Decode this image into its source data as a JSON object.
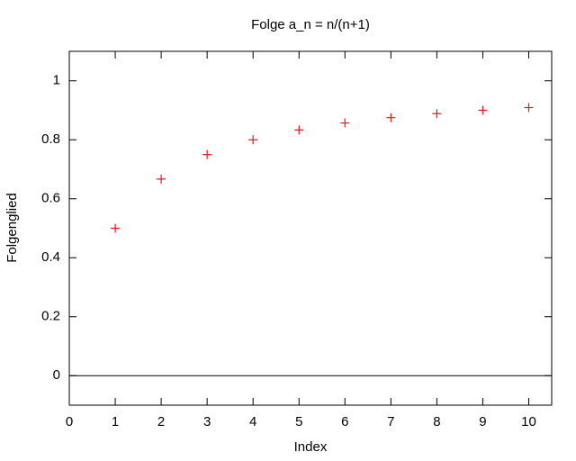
{
  "chart_data": {
    "type": "scatter",
    "title": "Folge a_n = n/(n+1)",
    "x_label": "Index",
    "y_label": "Folgenglied",
    "x": [
      1,
      2,
      3,
      4,
      5,
      6,
      7,
      8,
      9,
      10
    ],
    "series": [
      {
        "name": "a_n",
        "color": "#e41a1c",
        "values": [
          0.5,
          0.6667,
          0.75,
          0.8,
          0.8333,
          0.8571,
          0.875,
          0.8889,
          0.9,
          0.9091
        ]
      }
    ],
    "xlim": [
      0,
      10.5
    ],
    "xticks": [
      0,
      1,
      2,
      3,
      4,
      5,
      6,
      7,
      8,
      9,
      10
    ],
    "ylim": [
      -0.1,
      1.1
    ],
    "yticks": [
      0,
      0.2,
      0.4,
      0.6,
      0.8,
      1
    ],
    "zero_axis": true,
    "legend": false
  }
}
